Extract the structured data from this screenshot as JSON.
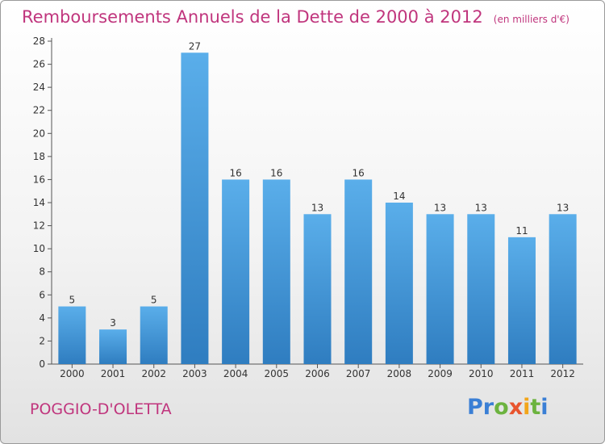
{
  "title": "Remboursements Annuels de la Dette de 2000 à 2012",
  "unit_label": "(en milliers d'€)",
  "commune": "POGGIO-D'OLETTA",
  "logo": {
    "text": "Proxiti",
    "letters": [
      "P",
      "r",
      "o",
      "x",
      "i",
      "t",
      "i"
    ],
    "colors": [
      "#3a7fd5",
      "#3a7fd5",
      "#6cb33f",
      "#e8542e",
      "#f2a51a",
      "#6cb33f",
      "#3a7fd5"
    ]
  },
  "colors": {
    "title": "#c0357d",
    "bar_light": "#5aaeea",
    "bar_dark": "#2f7dc0"
  },
  "chart_data": {
    "type": "bar",
    "title": "Remboursements Annuels de la Dette de 2000 à 2012",
    "categories": [
      "2000",
      "2001",
      "2002",
      "2003",
      "2004",
      "2005",
      "2006",
      "2007",
      "2008",
      "2009",
      "2010",
      "2011",
      "2012"
    ],
    "values": [
      5,
      3,
      5,
      27,
      16,
      16,
      13,
      16,
      14,
      13,
      13,
      11,
      13
    ],
    "ylim": [
      0,
      28
    ],
    "yticks": [
      0,
      2,
      4,
      6,
      8,
      10,
      12,
      14,
      16,
      18,
      20,
      22,
      24,
      26,
      28
    ],
    "grid": false,
    "legend": "none"
  }
}
